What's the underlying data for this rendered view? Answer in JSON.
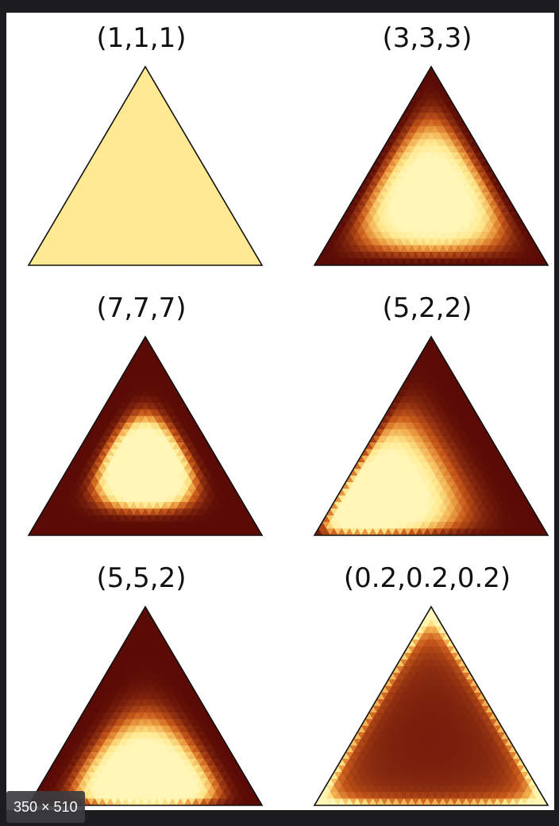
{
  "viewer": {
    "image_size_badge": "350 × 510"
  },
  "chart_data": {
    "type": "heatmap",
    "description_kind": "ternary-density",
    "colormap": [
      "#5a0b05",
      "#8a2c10",
      "#c7581a",
      "#f0a84a",
      "#ffe98f",
      "#fff6b8"
    ],
    "panels": [
      {
        "title": "(1,1,1)",
        "alpha": [
          1,
          1,
          1
        ]
      },
      {
        "title": "(3,3,3)",
        "alpha": [
          3,
          3,
          3
        ]
      },
      {
        "title": "(7,7,7)",
        "alpha": [
          7,
          7,
          7
        ]
      },
      {
        "title": "(5,2,2)",
        "alpha": [
          5,
          2,
          2
        ]
      },
      {
        "title": "(5,5,2)",
        "alpha": [
          5,
          5,
          2
        ]
      },
      {
        "title": "(0.2,0.2,0.2)",
        "alpha": [
          0.2,
          0.2,
          0.2
        ]
      }
    ]
  }
}
